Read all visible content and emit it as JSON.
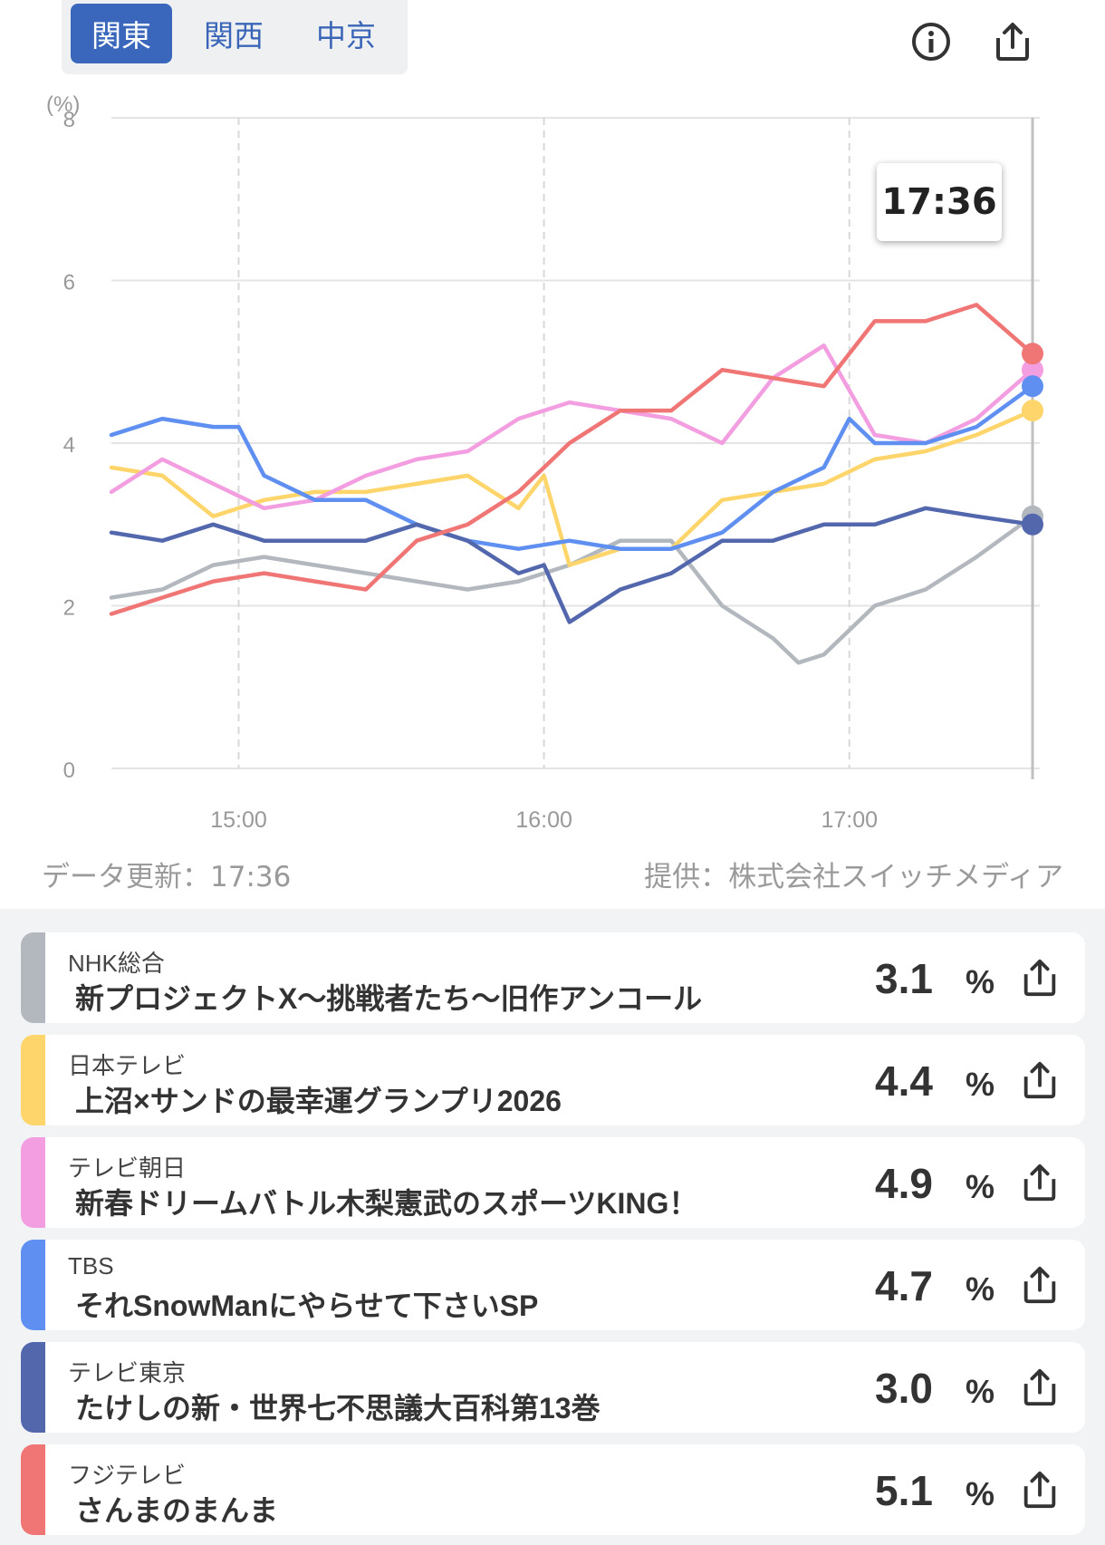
{
  "tabs": [
    {
      "label": "関東",
      "active": true
    },
    {
      "label": "関西",
      "active": false
    },
    {
      "label": "中京",
      "active": false
    }
  ],
  "icons": {
    "info": "info-icon",
    "share": "share-icon"
  },
  "tooltip_time": "17:36",
  "chart_data": {
    "type": "line",
    "ylabel": "(%)",
    "ylim": [
      0,
      8
    ],
    "yticks": [
      0,
      2,
      4,
      6,
      8
    ],
    "xlim": [
      "14:35",
      "17:36"
    ],
    "xticks": [
      "15:00",
      "16:00",
      "17:00"
    ],
    "grid": true,
    "series": [
      {
        "name": "NHK総合",
        "color": "#b3b8bf",
        "x": [
          "14:35",
          "14:45",
          "14:55",
          "15:05",
          "15:15",
          "15:25",
          "15:35",
          "15:45",
          "15:55",
          "16:05",
          "16:15",
          "16:25",
          "16:35",
          "16:45",
          "16:50",
          "16:55",
          "17:05",
          "17:15",
          "17:25",
          "17:36"
        ],
        "y": [
          2.1,
          2.2,
          2.5,
          2.6,
          2.5,
          2.4,
          2.3,
          2.2,
          2.3,
          2.5,
          2.8,
          2.8,
          2.0,
          1.6,
          1.3,
          1.4,
          2.0,
          2.2,
          2.6,
          3.1
        ]
      },
      {
        "name": "日本テレビ",
        "color": "#fdd56a",
        "x": [
          "14:35",
          "14:45",
          "14:55",
          "15:05",
          "15:15",
          "15:25",
          "15:35",
          "15:45",
          "15:55",
          "16:00",
          "16:05",
          "16:15",
          "16:25",
          "16:35",
          "16:45",
          "16:55",
          "17:05",
          "17:15",
          "17:25",
          "17:36"
        ],
        "y": [
          3.7,
          3.6,
          3.1,
          3.3,
          3.4,
          3.4,
          3.5,
          3.6,
          3.2,
          3.6,
          2.5,
          2.7,
          2.7,
          3.3,
          3.4,
          3.5,
          3.8,
          3.9,
          4.1,
          4.4
        ]
      },
      {
        "name": "テレビ朝日",
        "color": "#f29ee0",
        "x": [
          "14:35",
          "14:45",
          "14:55",
          "15:05",
          "15:15",
          "15:25",
          "15:35",
          "15:45",
          "15:55",
          "16:05",
          "16:15",
          "16:25",
          "16:35",
          "16:45",
          "16:55",
          "17:05",
          "17:15",
          "17:25",
          "17:36"
        ],
        "y": [
          3.4,
          3.8,
          3.5,
          3.2,
          3.3,
          3.6,
          3.8,
          3.9,
          4.3,
          4.5,
          4.4,
          4.3,
          4.0,
          4.8,
          5.2,
          4.1,
          4.0,
          4.3,
          4.9
        ]
      },
      {
        "name": "TBS",
        "color": "#5f8ff0",
        "x": [
          "14:35",
          "14:45",
          "14:55",
          "15:00",
          "15:05",
          "15:15",
          "15:25",
          "15:35",
          "15:45",
          "15:55",
          "16:05",
          "16:15",
          "16:25",
          "16:35",
          "16:45",
          "16:55",
          "17:00",
          "17:05",
          "17:15",
          "17:25",
          "17:36"
        ],
        "y": [
          4.1,
          4.3,
          4.2,
          4.2,
          3.6,
          3.3,
          3.3,
          3.0,
          2.8,
          2.7,
          2.8,
          2.7,
          2.7,
          2.9,
          3.4,
          3.7,
          4.3,
          4.0,
          4.0,
          4.2,
          4.7
        ]
      },
      {
        "name": "テレビ東京",
        "color": "#5367ad",
        "x": [
          "14:35",
          "14:45",
          "14:55",
          "15:05",
          "15:15",
          "15:25",
          "15:35",
          "15:45",
          "15:55",
          "16:00",
          "16:05",
          "16:15",
          "16:25",
          "16:35",
          "16:45",
          "16:55",
          "17:05",
          "17:15",
          "17:25",
          "17:36"
        ],
        "y": [
          2.9,
          2.8,
          3.0,
          2.8,
          2.8,
          2.8,
          3.0,
          2.8,
          2.4,
          2.5,
          1.8,
          2.2,
          2.4,
          2.8,
          2.8,
          3.0,
          3.0,
          3.2,
          3.1,
          3.0
        ]
      },
      {
        "name": "フジテレビ",
        "color": "#f07575",
        "x": [
          "14:35",
          "14:45",
          "14:55",
          "15:05",
          "15:15",
          "15:25",
          "15:35",
          "15:45",
          "15:55",
          "16:05",
          "16:15",
          "16:25",
          "16:35",
          "16:45",
          "16:55",
          "17:05",
          "17:15",
          "17:25",
          "17:36"
        ],
        "y": [
          1.9,
          2.1,
          2.3,
          2.4,
          2.3,
          2.2,
          2.8,
          3.0,
          3.4,
          4.0,
          4.4,
          4.4,
          4.9,
          4.8,
          4.7,
          5.5,
          5.5,
          5.7,
          5.1
        ]
      }
    ]
  },
  "footer": {
    "updated": "データ更新：17:36",
    "provider": "提供：株式会社スイッチメディア"
  },
  "stations": [
    {
      "station": "NHK総合",
      "program": "新プロジェクトX〜挑戦者たち〜旧作アンコール",
      "value": "3.1",
      "unit": "%",
      "color": "#b3b8bf"
    },
    {
      "station": "日本テレビ",
      "program": "上沼×サンドの最幸運グランプリ2026",
      "value": "4.4",
      "unit": "%",
      "color": "#fdd56a"
    },
    {
      "station": "テレビ朝日",
      "program": "新春ドリームバトル木梨憲武のスポーツKING！",
      "value": "4.9",
      "unit": "%",
      "color": "#f29ee0"
    },
    {
      "station": "TBS",
      "program": "それSnowManにやらせて下さいSP",
      "value": "4.7",
      "unit": "%",
      "color": "#5f8ff0"
    },
    {
      "station": "テレビ東京",
      "program": "たけしの新・世界七不思議大百科第13巻",
      "value": "3.0",
      "unit": "%",
      "color": "#5367ad"
    },
    {
      "station": "フジテレビ",
      "program": "さんまのまんま",
      "value": "5.1",
      "unit": "%",
      "color": "#f07575"
    }
  ]
}
